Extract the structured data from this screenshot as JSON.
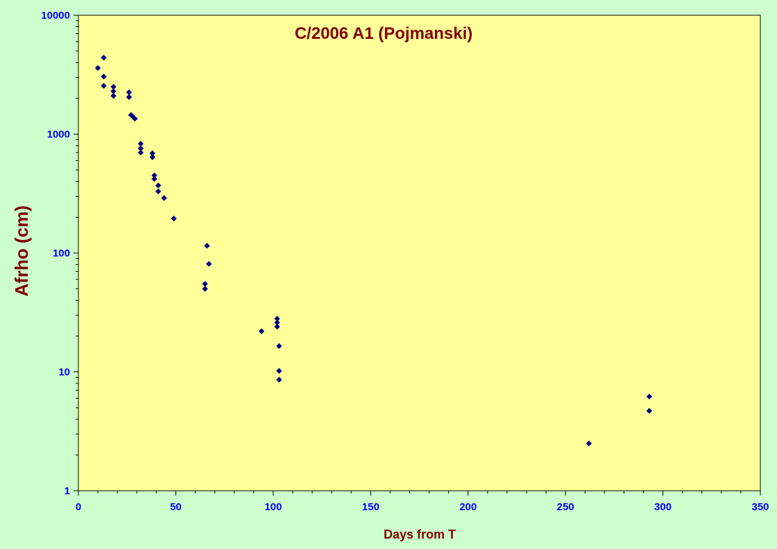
{
  "chart_data": {
    "type": "scatter",
    "title": "C/2006 A1 (Pojmanski)",
    "xlabel": "Days from T",
    "ylabel": "Afrho (cm)",
    "xlim": [
      0,
      350
    ],
    "ylim": [
      1,
      10000
    ],
    "y_scale": "log",
    "x_ticks": [
      "0",
      "50",
      "100",
      "150",
      "200",
      "250",
      "300",
      "350"
    ],
    "y_ticks": [
      "1",
      "10",
      "100",
      "1000",
      "10000"
    ],
    "grid": false,
    "colors": {
      "background": "#ccffcc",
      "plot_area": "#ffff99",
      "marker": "#000080",
      "title": "#800000",
      "tick_labels": "#0000ff"
    },
    "series": [
      {
        "points": [
          [
            10,
            3600
          ],
          [
            13,
            4400
          ],
          [
            13,
            3050
          ],
          [
            13,
            2550
          ],
          [
            18,
            2500
          ],
          [
            18,
            2300
          ],
          [
            18,
            2100
          ],
          [
            26,
            2250
          ],
          [
            26,
            2050
          ],
          [
            27,
            1450
          ],
          [
            28,
            1400
          ],
          [
            29,
            1350
          ],
          [
            32,
            830
          ],
          [
            32,
            760
          ],
          [
            32,
            700
          ],
          [
            38,
            690
          ],
          [
            38,
            640
          ],
          [
            39,
            450
          ],
          [
            39,
            420
          ],
          [
            41,
            370
          ],
          [
            41,
            330
          ],
          [
            44,
            290
          ],
          [
            49,
            195
          ],
          [
            65,
            55
          ],
          [
            65,
            50
          ],
          [
            66,
            115
          ],
          [
            67,
            81
          ],
          [
            94,
            22
          ],
          [
            102,
            28
          ],
          [
            102,
            26
          ],
          [
            102,
            24
          ],
          [
            103,
            16.5
          ],
          [
            103,
            10.2
          ],
          [
            103,
            8.6
          ],
          [
            262,
            2.5
          ],
          [
            293,
            6.2
          ],
          [
            293,
            4.7
          ]
        ]
      }
    ]
  }
}
